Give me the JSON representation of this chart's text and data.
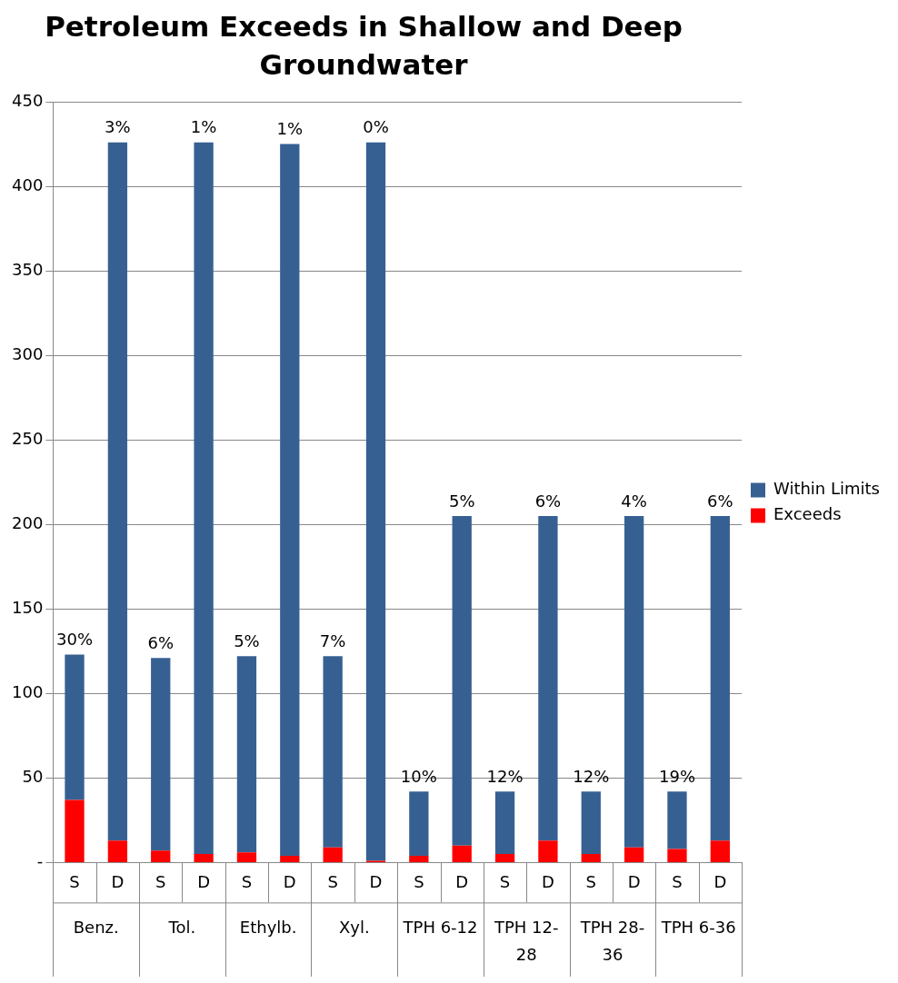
{
  "chart_data": {
    "type": "bar",
    "title": "Petroleum Exceeds in Shallow and Deep Groundwater",
    "categories": [
      "S",
      "D",
      "S",
      "D",
      "S",
      "D",
      "S",
      "D",
      "S",
      "D",
      "S",
      "D",
      "S",
      "D",
      "S",
      "D"
    ],
    "annotations": [
      "Benz.",
      "Tol.",
      "Ethylb.",
      "Xyl.",
      "TPH 6-12",
      "TPH 12-28",
      "TPH 28-36",
      "TPH 6-36",
      {
        "text": "30%",
        "y": 123
      },
      {
        "text": "3%",
        "y": 426
      },
      {
        "text": "6%",
        "y": 121
      },
      {
        "text": "1%",
        "y": 426
      },
      {
        "text": "5%",
        "y": 122
      },
      {
        "text": "1%",
        "y": 425
      },
      {
        "text": "7%",
        "y": 122
      },
      {
        "text": "0%",
        "y": 426
      },
      {
        "text": "10%",
        "y": 42
      },
      {
        "text": "5%",
        "y": 205
      },
      {
        "text": "12%",
        "y": 42
      },
      {
        "text": "6%",
        "y": 205
      },
      {
        "text": "12%",
        "y": 42
      },
      {
        "text": "4%",
        "y": 205
      },
      {
        "text": "19%",
        "y": 42
      },
      {
        "text": "6%",
        "y": 205
      }
    ],
    "stacked": true,
    "series": [
      {
        "name": "Exceeds",
        "color": "#ff0000",
        "values": [
          37,
          13,
          7,
          5,
          6,
          4,
          9,
          1,
          4,
          10,
          5,
          13,
          5,
          9,
          8,
          13
        ]
      },
      {
        "name": "Within Limits",
        "color": "#376092",
        "values": [
          86,
          413,
          114,
          421,
          116,
          421,
          113,
          425,
          38,
          195,
          37,
          192,
          37,
          196,
          34,
          192
        ]
      }
    ],
    "ylim": [
      0,
      450
    ],
    "yticks": [
      {
        "value": 0,
        "label": "-"
      },
      50,
      100,
      150,
      200,
      250,
      300,
      350,
      400,
      450
    ],
    "grid": "y",
    "legend": "right"
  }
}
